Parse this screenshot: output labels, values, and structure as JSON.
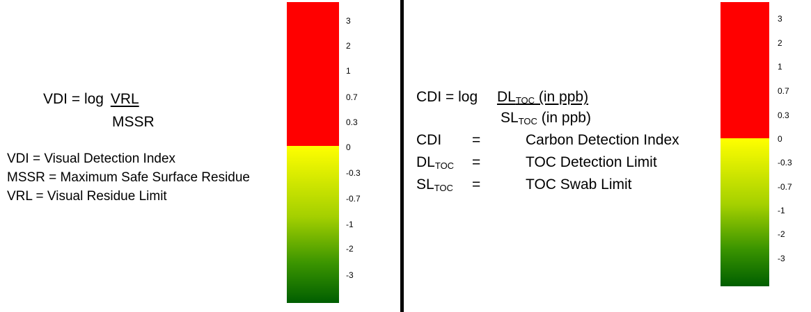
{
  "left": {
    "formula": {
      "lhs": "VDI = log",
      "numerator": "VRL",
      "denominator": "MSSR"
    },
    "definitions": [
      "VDI = Visual Detection Index",
      "MSSR =  Maximum Safe Surface Residue",
      "VRL = Visual Residue Limit"
    ],
    "scale": {
      "labels": [
        "3",
        "2",
        "1",
        "0.7",
        "0.3",
        "0",
        "-0.3",
        "-0.7",
        "-1",
        "-2",
        "-3"
      ],
      "split_value": "0"
    }
  },
  "right": {
    "formula": {
      "lhs": "CDI = log",
      "numerator": {
        "main": "DL",
        "sub": "TOC",
        "suffix": " (in ppb)"
      },
      "denominator": {
        "main": "SL",
        "sub": "TOC",
        "suffix": " (in ppb)"
      }
    },
    "definitions": [
      {
        "term": "CDI",
        "term_sub": "",
        "eq": "=",
        "meaning": "Carbon Detection Index"
      },
      {
        "term": "DL",
        "term_sub": "TOC",
        "eq": "=",
        "meaning": "TOC Detection Limit"
      },
      {
        "term": "SL",
        "term_sub": "TOC",
        "eq": "=",
        "meaning": "TOC Swab Limit"
      }
    ],
    "scale": {
      "labels": [
        "3",
        "2",
        "1",
        "0.7",
        "0.3",
        "0",
        "-0.3",
        "-0.7",
        "-1",
        "-2",
        "-3"
      ],
      "split_value": "0"
    }
  },
  "colors": {
    "red": "#ff0000",
    "yellow": "#ffff00",
    "green_dark": "#006400",
    "divider": "#000000"
  }
}
